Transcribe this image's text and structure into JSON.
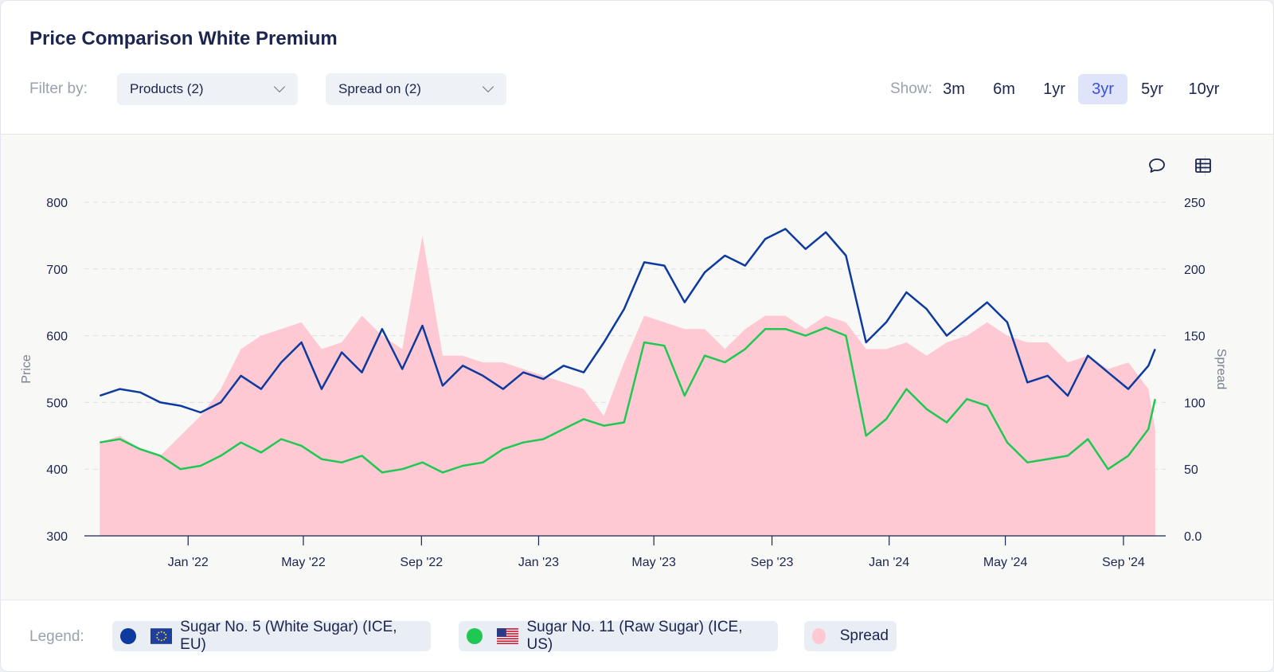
{
  "header": {
    "title": "Price Comparison White Premium",
    "filter_label": "Filter by:",
    "filters": [
      "Products (2)",
      "Spread on (2)"
    ],
    "show_label": "Show:",
    "ranges": [
      "3m",
      "6m",
      "1yr",
      "3yr",
      "5yr",
      "10yr"
    ],
    "active_range": "3yr"
  },
  "toolbar": {
    "icons": [
      "comment-icon",
      "table-icon"
    ]
  },
  "legend": {
    "label": "Legend:",
    "items": [
      {
        "label": "Sugar No. 5 (White Sugar) (ICE, EU)",
        "color": "#0d3a9e",
        "flag": "eu-flag-icon"
      },
      {
        "label": "Sugar No. 11 (Raw Sugar) (ICE, US)",
        "color": "#1ec853",
        "flag": "us-flag-icon"
      },
      {
        "label": "Spread",
        "color": "#ffc9d3"
      }
    ]
  },
  "chart_data": {
    "type": "line",
    "ylabel": "Price",
    "y2label": "Spread",
    "ylim": [
      300,
      800
    ],
    "y2lim": [
      0,
      250
    ],
    "yticks": [
      300,
      400,
      500,
      600,
      700,
      800
    ],
    "y2ticks": [
      "0.0",
      "50",
      "100",
      "150",
      "200",
      "250"
    ],
    "xlim": [
      "2021-09-15",
      "2024-10-15"
    ],
    "xticks": [
      {
        "date": "2022-01-01",
        "label": "Jan '22"
      },
      {
        "date": "2022-05-01",
        "label": "May '22"
      },
      {
        "date": "2022-09-01",
        "label": "Sep '22"
      },
      {
        "date": "2023-01-01",
        "label": "Jan '23"
      },
      {
        "date": "2023-05-01",
        "label": "May '23"
      },
      {
        "date": "2023-09-01",
        "label": "Sep '23"
      },
      {
        "date": "2024-01-01",
        "label": "Jan '24"
      },
      {
        "date": "2024-05-01",
        "label": "May '24"
      },
      {
        "date": "2024-09-01",
        "label": "Sep '24"
      }
    ],
    "grid": true,
    "x": [
      "2021-10-01",
      "2021-10-22",
      "2021-11-12",
      "2021-12-03",
      "2021-12-24",
      "2022-01-14",
      "2022-02-04",
      "2022-02-25",
      "2022-03-18",
      "2022-04-08",
      "2022-04-29",
      "2022-05-20",
      "2022-06-10",
      "2022-07-01",
      "2022-07-22",
      "2022-08-12",
      "2022-09-02",
      "2022-09-23",
      "2022-10-14",
      "2022-11-04",
      "2022-11-25",
      "2022-12-16",
      "2023-01-06",
      "2023-01-27",
      "2023-02-17",
      "2023-03-10",
      "2023-03-31",
      "2023-04-21",
      "2023-05-12",
      "2023-06-02",
      "2023-06-23",
      "2023-07-14",
      "2023-08-04",
      "2023-08-25",
      "2023-09-15",
      "2023-10-06",
      "2023-10-27",
      "2023-11-17",
      "2023-12-08",
      "2023-12-29",
      "2024-01-19",
      "2024-02-09",
      "2024-03-01",
      "2024-03-22",
      "2024-04-12",
      "2024-05-03",
      "2024-05-24",
      "2024-06-14",
      "2024-07-05",
      "2024-07-26",
      "2024-08-16",
      "2024-09-06",
      "2024-09-27",
      "2024-10-04"
    ],
    "series": [
      {
        "name": "Sugar No. 5 (White Sugar) (ICE, EU)",
        "axis": "left",
        "values": [
          510,
          520,
          515,
          500,
          495,
          485,
          500,
          540,
          520,
          560,
          590,
          520,
          575,
          545,
          610,
          550,
          615,
          525,
          555,
          540,
          520,
          545,
          535,
          555,
          545,
          590,
          640,
          710,
          705,
          650,
          695,
          720,
          705,
          745,
          760,
          730,
          755,
          720,
          590,
          620,
          665,
          640,
          600,
          625,
          650,
          620,
          530,
          540,
          510,
          570,
          545,
          520,
          555,
          580
        ]
      },
      {
        "name": "Sugar No. 11 (Raw Sugar) (ICE, US)",
        "axis": "left",
        "values": [
          440,
          445,
          430,
          420,
          400,
          405,
          420,
          440,
          425,
          445,
          435,
          415,
          410,
          420,
          395,
          400,
          410,
          395,
          405,
          410,
          430,
          440,
          445,
          460,
          475,
          465,
          470,
          590,
          585,
          510,
          570,
          560,
          580,
          610,
          610,
          600,
          612,
          600,
          450,
          475,
          520,
          490,
          470,
          505,
          495,
          440,
          410,
          415,
          420,
          445,
          400,
          420,
          460,
          505
        ]
      },
      {
        "name": "Spread",
        "axis": "right",
        "values": [
          70,
          75,
          65,
          60,
          75,
          90,
          110,
          140,
          150,
          155,
          160,
          140,
          145,
          165,
          150,
          140,
          225,
          135,
          135,
          130,
          130,
          125,
          120,
          115,
          110,
          90,
          130,
          165,
          160,
          155,
          155,
          140,
          155,
          165,
          165,
          155,
          165,
          160,
          140,
          140,
          145,
          135,
          145,
          150,
          160,
          150,
          145,
          145,
          130,
          135,
          125,
          130,
          110,
          80
        ]
      }
    ]
  }
}
